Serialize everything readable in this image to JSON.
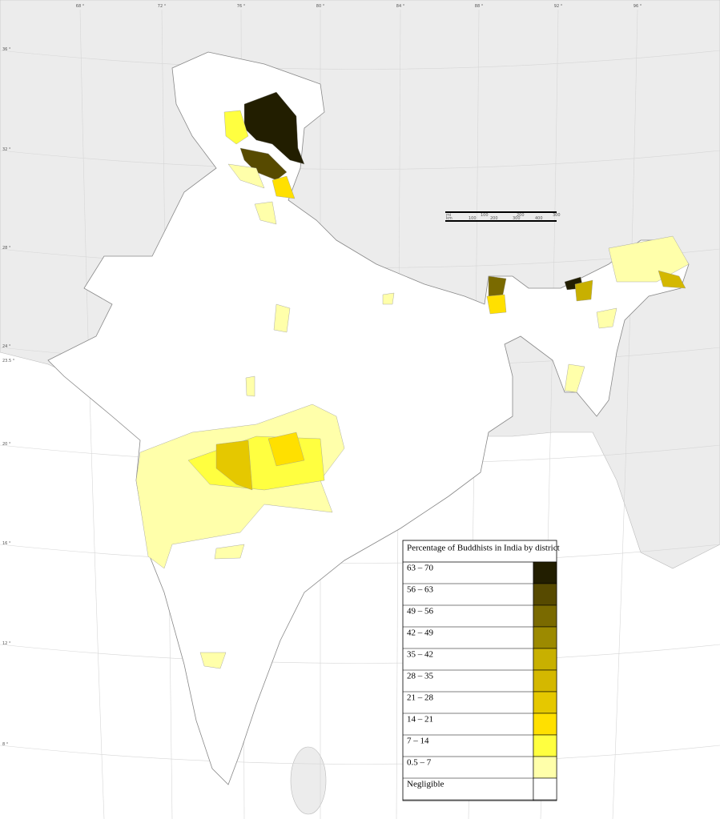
{
  "legend": {
    "title": "Percentage of Buddhists in India by district",
    "entries": [
      {
        "label": "63 – 70",
        "color": "#221e00"
      },
      {
        "label": "56 – 63",
        "color": "#574a00"
      },
      {
        "label": "49 – 56",
        "color": "#7a6a00"
      },
      {
        "label": "42 – 49",
        "color": "#9c8a00"
      },
      {
        "label": "35 – 42",
        "color": "#c8b000"
      },
      {
        "label": "28 – 35",
        "color": "#d4b800"
      },
      {
        "label": "21 – 28",
        "color": "#e5c800"
      },
      {
        "label": "14 – 21",
        "color": "#ffe000"
      },
      {
        "label": "7 – 14",
        "color": "#ffff40"
      },
      {
        "label": "0.5 – 7",
        "color": "#ffffaa"
      },
      {
        "label": "Negligible",
        "color": "#ffffff"
      }
    ]
  },
  "graticule": {
    "longitudes": [
      "68 °",
      "72 °",
      "76 °",
      "80 °",
      "84 °",
      "88 °",
      "92 °",
      "96 °"
    ],
    "latitudes": [
      "36 °",
      "32 °",
      "28 °",
      "24 °",
      "23.5 °",
      "20 °",
      "16 °",
      "12 °",
      "8 °"
    ]
  },
  "scale_bar": {
    "miles": [
      "mi",
      "100",
      "200",
      "300"
    ],
    "km": [
      "km",
      "100",
      "200",
      "300",
      "400"
    ]
  }
}
